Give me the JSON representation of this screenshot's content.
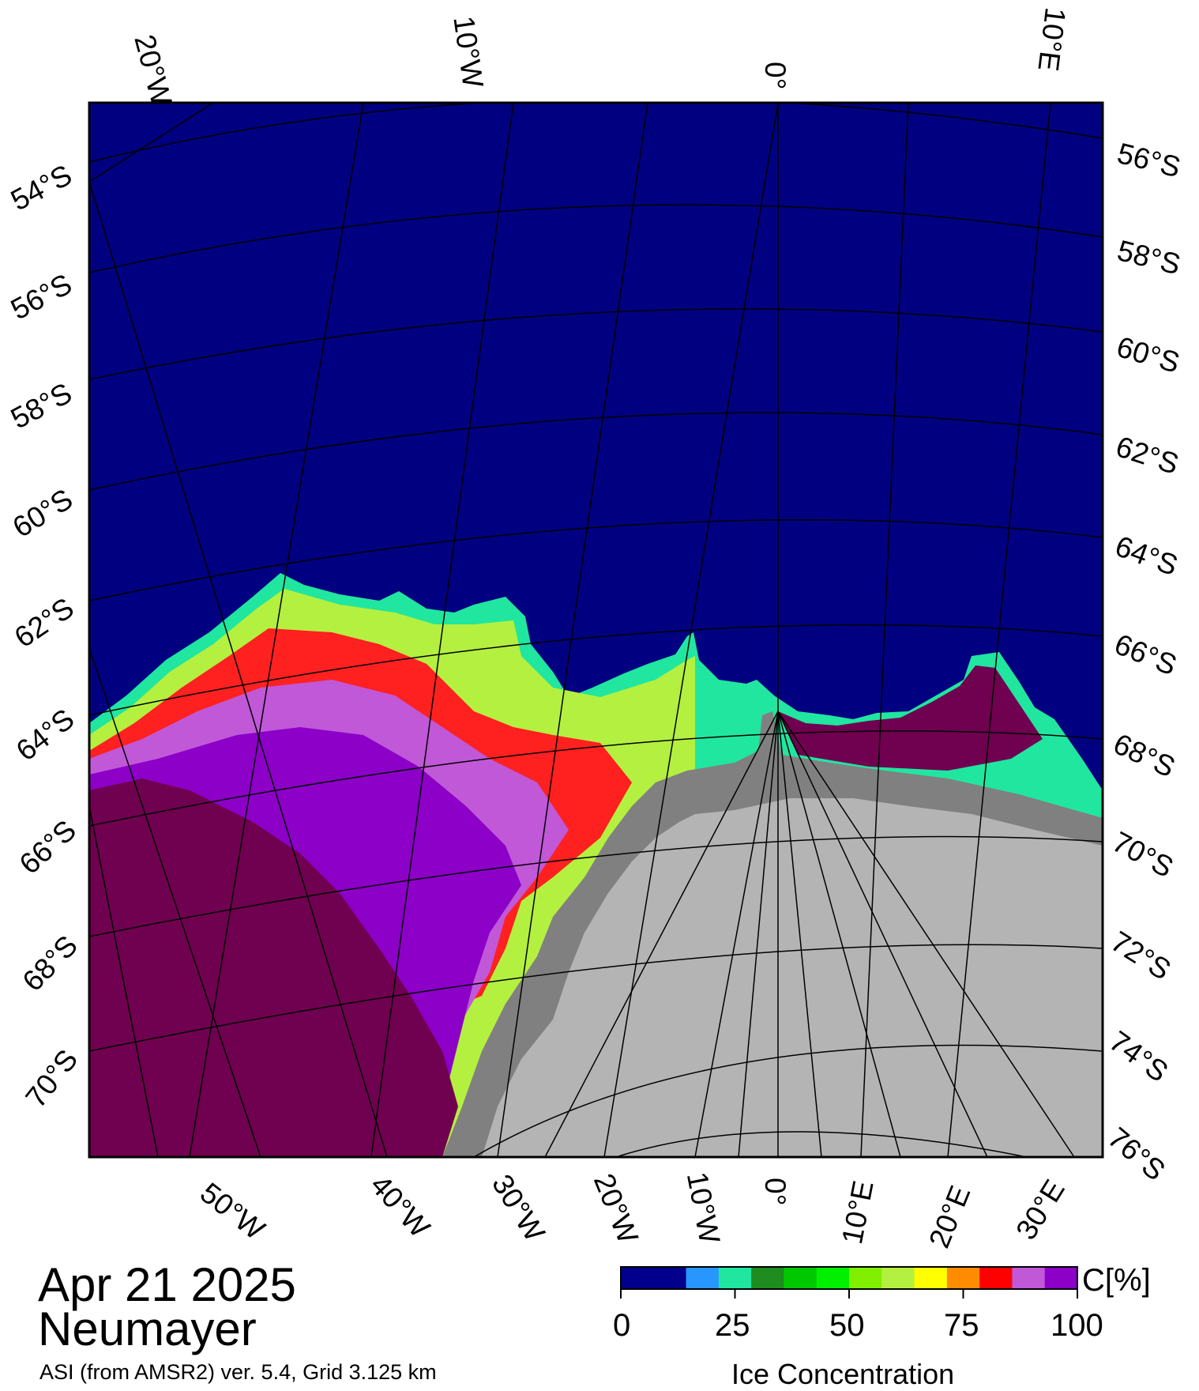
{
  "map": {
    "date": "Apr 21 2025",
    "station": "Neumayer",
    "source_line": "ASI (from AMSR2) ver. 5.4,  Grid 3.125 km",
    "top_labels": [
      "20°W",
      "10°W",
      "0°",
      "10°E"
    ],
    "bottom_labels": [
      "50°W",
      "40°W",
      "30°W",
      "20°W",
      "10°W",
      "0°",
      "10°E",
      "20°E",
      "30°E"
    ],
    "left_labels": [
      "54°S",
      "56°S",
      "58°S",
      "60°S",
      "62°S",
      "64°S",
      "66°S",
      "68°S",
      "70°S"
    ],
    "right_labels": [
      "56°S",
      "58°S",
      "60°S",
      "62°S",
      "64°S",
      "66°S",
      "68°S",
      "70°S",
      "72°S",
      "74°S",
      "76°S"
    ],
    "colors": {
      "ocean": "#000080",
      "land_ice": "#b4b4b4",
      "ice_shelf": "#808080",
      "high_ice": "#700050",
      "mid_purple": "#8c00c8",
      "light_purple": "#c058d8"
    }
  },
  "colorbar": {
    "unit_label": "C[%]",
    "title": "Ice Concentration",
    "ticks": [
      "0",
      "25",
      "50",
      "75",
      "100"
    ],
    "colors": [
      "#00008c",
      "#00008c",
      "#2896ff",
      "#20e6a0",
      "#1f8c1f",
      "#00c800",
      "#00f000",
      "#80f000",
      "#b4f040",
      "#ffff00",
      "#ff8c00",
      "#ff0000",
      "#c058d8",
      "#8c00c8"
    ]
  }
}
